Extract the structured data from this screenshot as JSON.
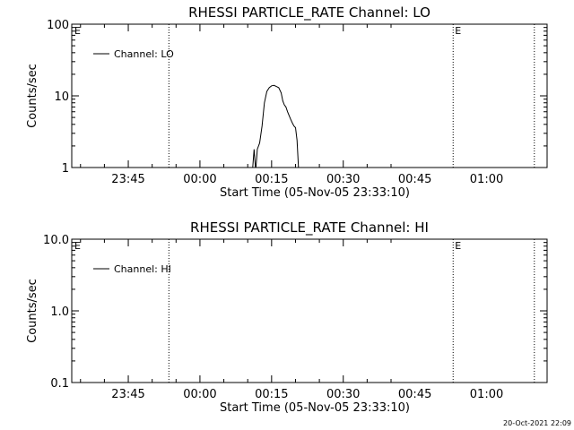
{
  "footer": {
    "timestamp": "20-Oct-2021 22:09"
  },
  "chart_data": [
    {
      "type": "line",
      "title": "RHESSI PARTICLE_RATE Channel: LO",
      "xlabel": "Start Time (05-Nov-05 23:33:10)",
      "ylabel": "Counts/sec",
      "yscale": "log",
      "ylim": [
        1,
        100
      ],
      "xlim": [
        "23:33:10",
        "01:12:40"
      ],
      "x_tick_labels": [
        "23:45",
        "00:00",
        "00:15",
        "00:30",
        "00:45",
        "01:00"
      ],
      "y_tick_labels": [
        "1",
        "10",
        "100"
      ],
      "legend": {
        "position": "top-left",
        "entries": [
          "Channel: LO"
        ]
      },
      "event_markers": [
        {
          "time": "23:53:30",
          "label": ""
        },
        {
          "time": "00:53:00",
          "label": "E"
        },
        {
          "time": "01:10:00",
          "label": ""
        }
      ],
      "start_marker_label": "E",
      "series": [
        {
          "name": "Channel: LO",
          "points": [
            [
              "00:11:00",
              0.9
            ],
            [
              "00:11:20",
              1.8
            ],
            [
              "00:11:40",
              0.9
            ],
            [
              "00:12:00",
              1.8
            ],
            [
              "00:12:30",
              2.2
            ],
            [
              "00:13:00",
              3.8
            ],
            [
              "00:13:30",
              8.0
            ],
            [
              "00:14:00",
              11.5
            ],
            [
              "00:14:30",
              13.0
            ],
            [
              "00:15:00",
              13.8
            ],
            [
              "00:15:30",
              14.0
            ],
            [
              "00:16:00",
              13.5
            ],
            [
              "00:16:30",
              13.0
            ],
            [
              "00:17:00",
              11.0
            ],
            [
              "00:17:20",
              8.5
            ],
            [
              "00:17:40",
              7.5
            ],
            [
              "00:18:00",
              7.0
            ],
            [
              "00:18:20",
              6.0
            ],
            [
              "00:18:40",
              5.3
            ],
            [
              "00:19:00",
              4.7
            ],
            [
              "00:19:20",
              4.2
            ],
            [
              "00:19:40",
              3.8
            ],
            [
              "00:20:00",
              3.6
            ],
            [
              "00:20:20",
              2.4
            ],
            [
              "00:20:40",
              0.9
            ]
          ]
        }
      ]
    },
    {
      "type": "line",
      "title": "RHESSI PARTICLE_RATE Channel: HI",
      "xlabel": "Start Time (05-Nov-05 23:33:10)",
      "ylabel": "Counts/sec",
      "yscale": "log",
      "ylim": [
        0.1,
        10
      ],
      "xlim": [
        "23:33:10",
        "01:12:40"
      ],
      "x_tick_labels": [
        "23:45",
        "00:00",
        "00:15",
        "00:30",
        "00:45",
        "01:00"
      ],
      "y_tick_labels": [
        "0.1",
        "1.0",
        "10.0"
      ],
      "legend": {
        "position": "top-left",
        "entries": [
          "Channel: HI"
        ]
      },
      "event_markers": [
        {
          "time": "23:53:30",
          "label": ""
        },
        {
          "time": "00:53:00",
          "label": "E"
        },
        {
          "time": "01:10:00",
          "label": ""
        }
      ],
      "start_marker_label": "E",
      "series": [
        {
          "name": "Channel: HI",
          "points": []
        }
      ]
    }
  ]
}
